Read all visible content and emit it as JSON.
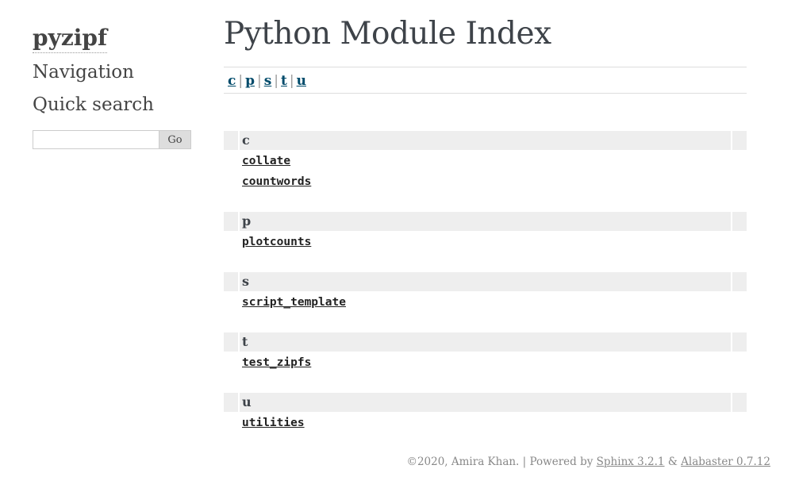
{
  "sidebar": {
    "logo": "pyzipf",
    "navigation_heading": "Navigation",
    "quick_search_heading": "Quick search",
    "search_value": "",
    "search_button": "Go"
  },
  "main": {
    "title": "Python Module Index",
    "letters": [
      "c",
      "p",
      "s",
      "t",
      "u"
    ],
    "groups": [
      {
        "letter": "c",
        "modules": [
          "collate",
          "countwords"
        ]
      },
      {
        "letter": "p",
        "modules": [
          "plotcounts"
        ]
      },
      {
        "letter": "s",
        "modules": [
          "script_template"
        ]
      },
      {
        "letter": "t",
        "modules": [
          "test_zipfs"
        ]
      },
      {
        "letter": "u",
        "modules": [
          "utilities"
        ]
      }
    ]
  },
  "footer": {
    "copyright": "©2020, Amira Khan.",
    "separator": "|",
    "powered_by": "Powered by",
    "sphinx_link": "Sphinx 3.2.1",
    "ampersand": "&",
    "alabaster_link": "Alabaster 0.7.12"
  }
}
